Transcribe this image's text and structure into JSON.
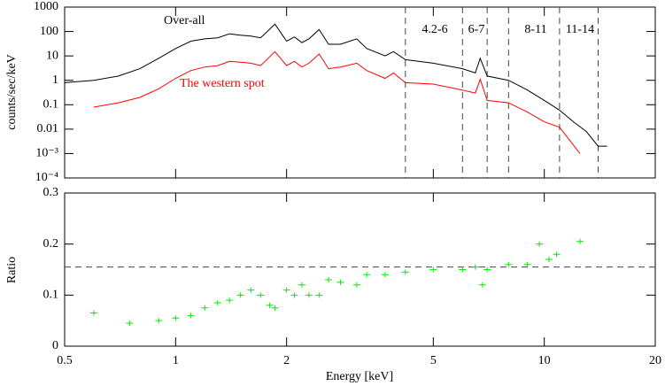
{
  "chart_data": [
    {
      "type": "line",
      "ylabel": "counts/sec/keV",
      "xlim": [
        0.5,
        20
      ],
      "ylim": [
        0.0001,
        1000
      ],
      "log_x": true,
      "log_y": true,
      "xticks": [
        0.5,
        1,
        2,
        5,
        10,
        20
      ],
      "yticks": [
        1000,
        100,
        10,
        1,
        0.1,
        0.01,
        {
          "value": 0.001,
          "label": "10⁻³"
        },
        {
          "value": 0.0001,
          "label": "10⁻⁴"
        }
      ],
      "vlines": [
        4.2,
        6,
        7,
        8,
        11,
        14
      ],
      "band_labels": [
        "4.2-6",
        "6-7",
        "8-11",
        "11-14"
      ],
      "series": [
        {
          "name": "Over-all",
          "color": "#000000",
          "x": [
            0.5,
            0.6,
            0.7,
            0.8,
            0.9,
            1.0,
            1.1,
            1.2,
            1.3,
            1.4,
            1.5,
            1.6,
            1.7,
            1.86,
            2.0,
            2.1,
            2.2,
            2.3,
            2.45,
            2.6,
            2.8,
            3.1,
            3.3,
            3.7,
            3.9,
            4.2,
            5.0,
            6.0,
            6.5,
            6.7,
            7.0,
            8.0,
            9.0,
            10,
            11,
            12,
            13,
            14,
            14.8
          ],
          "values": [
            0.8,
            1.0,
            1.5,
            3,
            8,
            20,
            40,
            50,
            55,
            80,
            70,
            65,
            55,
            200,
            40,
            60,
            35,
            50,
            120,
            30,
            30,
            50,
            20,
            10,
            15,
            7,
            5,
            3,
            2,
            8,
            1.5,
            1,
            0.4,
            0.15,
            0.06,
            0.02,
            0.008,
            0.002,
            0.002
          ]
        },
        {
          "name": "The western spot",
          "color": "#ff0000",
          "x": [
            0.6,
            0.7,
            0.8,
            0.9,
            1.0,
            1.1,
            1.2,
            1.3,
            1.4,
            1.5,
            1.6,
            1.7,
            1.86,
            2.0,
            2.1,
            2.2,
            2.3,
            2.45,
            2.6,
            2.8,
            3.1,
            3.3,
            3.7,
            3.9,
            4.2,
            5.0,
            6.0,
            6.5,
            6.7,
            7.0,
            8.0,
            9.0,
            10,
            11,
            12.5
          ],
          "values": [
            0.08,
            0.12,
            0.2,
            0.45,
            1.2,
            2.5,
            3.5,
            4,
            6,
            5.5,
            5,
            4,
            15,
            4,
            6,
            3.5,
            5,
            12,
            3,
            3.5,
            5,
            2.5,
            1.2,
            2,
            0.8,
            0.7,
            0.4,
            0.3,
            1.1,
            0.15,
            0.12,
            0.05,
            0.02,
            0.012,
            0.001
          ]
        }
      ]
    },
    {
      "type": "scatter",
      "xlabel": "Energy [keV]",
      "ylabel": "Ratio",
      "xlim": [
        0.5,
        20
      ],
      "ylim": [
        0,
        0.3
      ],
      "log_x": true,
      "xticks": [
        0.5,
        1,
        2,
        5,
        10,
        20
      ],
      "yticks": [
        0,
        0.1,
        0.2,
        0.3
      ],
      "reference_line": 0.155,
      "color": "#00ee00",
      "x": [
        0.6,
        0.75,
        0.9,
        1.0,
        1.1,
        1.2,
        1.3,
        1.4,
        1.5,
        1.6,
        1.7,
        1.8,
        1.86,
        2.0,
        2.1,
        2.2,
        2.3,
        2.45,
        2.6,
        2.8,
        3.1,
        3.3,
        3.7,
        4.2,
        5.0,
        6.0,
        6.5,
        6.8,
        7.0,
        8.0,
        9.0,
        9.7,
        10.3,
        10.8,
        12.5
      ],
      "values": [
        0.065,
        0.045,
        0.05,
        0.055,
        0.06,
        0.075,
        0.085,
        0.09,
        0.1,
        0.11,
        0.1,
        0.08,
        0.075,
        0.11,
        0.1,
        0.12,
        0.1,
        0.1,
        0.13,
        0.125,
        0.12,
        0.14,
        0.14,
        0.145,
        0.15,
        0.15,
        0.155,
        0.12,
        0.15,
        0.16,
        0.16,
        0.2,
        0.17,
        0.18,
        0.205
      ]
    }
  ]
}
